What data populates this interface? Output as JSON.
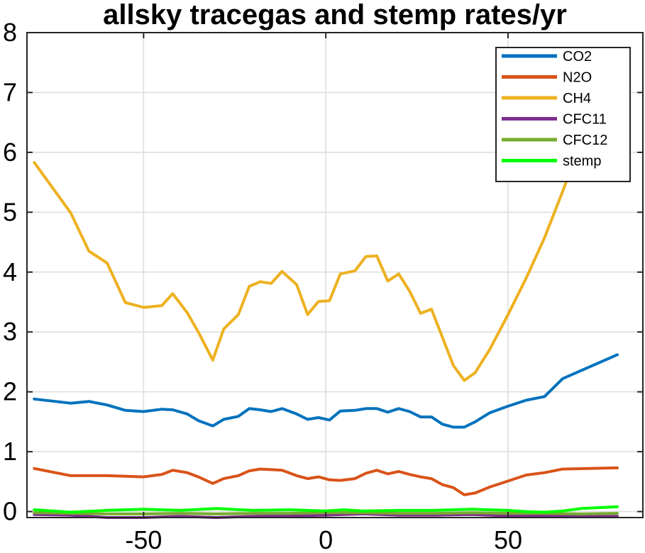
{
  "chart_data": {
    "type": "line",
    "title": "allsky tracegas and stemp rates/yr",
    "xlabel": "",
    "ylabel": "",
    "xlim": [
      -82,
      87
    ],
    "ylim": [
      -0.1,
      8
    ],
    "xticks": [
      -50,
      0,
      50
    ],
    "xtick_labels": [
      "-50",
      "0",
      "50"
    ],
    "yticks": [
      0,
      1,
      2,
      3,
      4,
      5,
      6,
      7,
      8
    ],
    "ytick_labels": [
      "0",
      "1",
      "2",
      "3",
      "4",
      "5",
      "6",
      "7",
      "8"
    ],
    "grid": true,
    "legend_position": "top-right",
    "series": [
      {
        "name": "CO2",
        "color": "#0072BD",
        "points": [
          [
            -80,
            1.88
          ],
          [
            -70,
            1.81
          ],
          [
            -65,
            1.84
          ],
          [
            -60,
            1.78
          ],
          [
            -55,
            1.69
          ],
          [
            -50,
            1.67
          ],
          [
            -45,
            1.71
          ],
          [
            -42,
            1.7
          ],
          [
            -38,
            1.63
          ],
          [
            -35,
            1.52
          ],
          [
            -31,
            1.43
          ],
          [
            -28,
            1.54
          ],
          [
            -24,
            1.59
          ],
          [
            -21,
            1.72
          ],
          [
            -18,
            1.7
          ],
          [
            -15,
            1.67
          ],
          [
            -12,
            1.72
          ],
          [
            -8,
            1.63
          ],
          [
            -5,
            1.54
          ],
          [
            -2,
            1.57
          ],
          [
            1,
            1.53
          ],
          [
            4,
            1.68
          ],
          [
            8,
            1.69
          ],
          [
            11,
            1.72
          ],
          [
            14,
            1.72
          ],
          [
            17,
            1.66
          ],
          [
            20,
            1.72
          ],
          [
            23,
            1.67
          ],
          [
            26,
            1.58
          ],
          [
            29,
            1.58
          ],
          [
            32,
            1.46
          ],
          [
            35,
            1.41
          ],
          [
            38,
            1.41
          ],
          [
            41,
            1.5
          ],
          [
            45,
            1.65
          ],
          [
            50,
            1.76
          ],
          [
            55,
            1.86
          ],
          [
            60,
            1.92
          ],
          [
            65,
            2.22
          ],
          [
            80,
            2.62
          ]
        ]
      },
      {
        "name": "N2O",
        "color": "#D95319",
        "points": [
          [
            -80,
            0.72
          ],
          [
            -70,
            0.6
          ],
          [
            -60,
            0.6
          ],
          [
            -55,
            0.59
          ],
          [
            -50,
            0.58
          ],
          [
            -45,
            0.62
          ],
          [
            -42,
            0.69
          ],
          [
            -38,
            0.65
          ],
          [
            -35,
            0.58
          ],
          [
            -31,
            0.47
          ],
          [
            -28,
            0.55
          ],
          [
            -24,
            0.6
          ],
          [
            -21,
            0.68
          ],
          [
            -18,
            0.71
          ],
          [
            -15,
            0.7
          ],
          [
            -12,
            0.69
          ],
          [
            -8,
            0.6
          ],
          [
            -5,
            0.55
          ],
          [
            -2,
            0.58
          ],
          [
            1,
            0.53
          ],
          [
            4,
            0.52
          ],
          [
            8,
            0.55
          ],
          [
            11,
            0.64
          ],
          [
            14,
            0.69
          ],
          [
            17,
            0.63
          ],
          [
            20,
            0.67
          ],
          [
            23,
            0.62
          ],
          [
            26,
            0.58
          ],
          [
            29,
            0.55
          ],
          [
            32,
            0.45
          ],
          [
            35,
            0.4
          ],
          [
            38,
            0.28
          ],
          [
            41,
            0.31
          ],
          [
            45,
            0.41
          ],
          [
            50,
            0.51
          ],
          [
            55,
            0.61
          ],
          [
            60,
            0.65
          ],
          [
            65,
            0.71
          ],
          [
            80,
            0.73
          ]
        ]
      },
      {
        "name": "CH4",
        "color": "#EDB120",
        "points": [
          [
            -80,
            5.83
          ],
          [
            -70,
            4.99
          ],
          [
            -65,
            4.35
          ],
          [
            -60,
            4.15
          ],
          [
            -55,
            3.49
          ],
          [
            -50,
            3.41
          ],
          [
            -45,
            3.44
          ],
          [
            -42,
            3.64
          ],
          [
            -38,
            3.32
          ],
          [
            -35,
            3.0
          ],
          [
            -31,
            2.53
          ],
          [
            -28,
            3.05
          ],
          [
            -24,
            3.29
          ],
          [
            -21,
            3.76
          ],
          [
            -18,
            3.84
          ],
          [
            -15,
            3.81
          ],
          [
            -12,
            4.01
          ],
          [
            -8,
            3.79
          ],
          [
            -5,
            3.29
          ],
          [
            -2,
            3.51
          ],
          [
            1,
            3.52
          ],
          [
            4,
            3.97
          ],
          [
            8,
            4.02
          ],
          [
            11,
            4.26
          ],
          [
            14,
            4.27
          ],
          [
            17,
            3.85
          ],
          [
            20,
            3.97
          ],
          [
            23,
            3.68
          ],
          [
            26,
            3.31
          ],
          [
            29,
            3.38
          ],
          [
            32,
            2.91
          ],
          [
            35,
            2.44
          ],
          [
            38,
            2.19
          ],
          [
            41,
            2.32
          ],
          [
            45,
            2.71
          ],
          [
            50,
            3.29
          ],
          [
            55,
            3.9
          ],
          [
            60,
            4.57
          ],
          [
            65,
            5.35
          ],
          [
            69,
            6.0
          ]
        ]
      },
      {
        "name": "CFC11",
        "color": "#7E2F8E",
        "points": [
          [
            -80,
            -0.05
          ],
          [
            -70,
            -0.06
          ],
          [
            -60,
            -0.1
          ],
          [
            -50,
            -0.1
          ],
          [
            -40,
            -0.08
          ],
          [
            -30,
            -0.1
          ],
          [
            -20,
            -0.08
          ],
          [
            -10,
            -0.07
          ],
          [
            0,
            -0.06
          ],
          [
            10,
            -0.04
          ],
          [
            20,
            -0.06
          ],
          [
            30,
            -0.06
          ],
          [
            40,
            -0.05
          ],
          [
            50,
            -0.07
          ],
          [
            60,
            -0.07
          ],
          [
            70,
            -0.08
          ],
          [
            80,
            -0.08
          ]
        ]
      },
      {
        "name": "CFC12",
        "color": "#77AC30",
        "points": [
          [
            -80,
            -0.02
          ],
          [
            -70,
            -0.03
          ],
          [
            -60,
            -0.04
          ],
          [
            -50,
            -0.04
          ],
          [
            -40,
            -0.03
          ],
          [
            -30,
            -0.04
          ],
          [
            -20,
            -0.03
          ],
          [
            -10,
            -0.03
          ],
          [
            0,
            -0.02
          ],
          [
            10,
            -0.02
          ],
          [
            20,
            -0.03
          ],
          [
            30,
            -0.03
          ],
          [
            40,
            -0.02
          ],
          [
            50,
            -0.03
          ],
          [
            60,
            -0.03
          ],
          [
            70,
            -0.04
          ],
          [
            80,
            -0.03
          ]
        ]
      },
      {
        "name": "stemp",
        "color": "#00FF00",
        "points": [
          [
            -80,
            0.03
          ],
          [
            -70,
            -0.01
          ],
          [
            -60,
            0.02
          ],
          [
            -50,
            0.04
          ],
          [
            -40,
            0.02
          ],
          [
            -30,
            0.05
          ],
          [
            -20,
            0.02
          ],
          [
            -10,
            0.03
          ],
          [
            0,
            0.01
          ],
          [
            5,
            0.03
          ],
          [
            10,
            0.01
          ],
          [
            20,
            0.02
          ],
          [
            30,
            0.02
          ],
          [
            40,
            0.04
          ],
          [
            50,
            0.02
          ],
          [
            55,
            0.0
          ],
          [
            60,
            -0.01
          ],
          [
            65,
            0.01
          ],
          [
            70,
            0.05
          ],
          [
            80,
            0.08
          ]
        ]
      }
    ]
  }
}
